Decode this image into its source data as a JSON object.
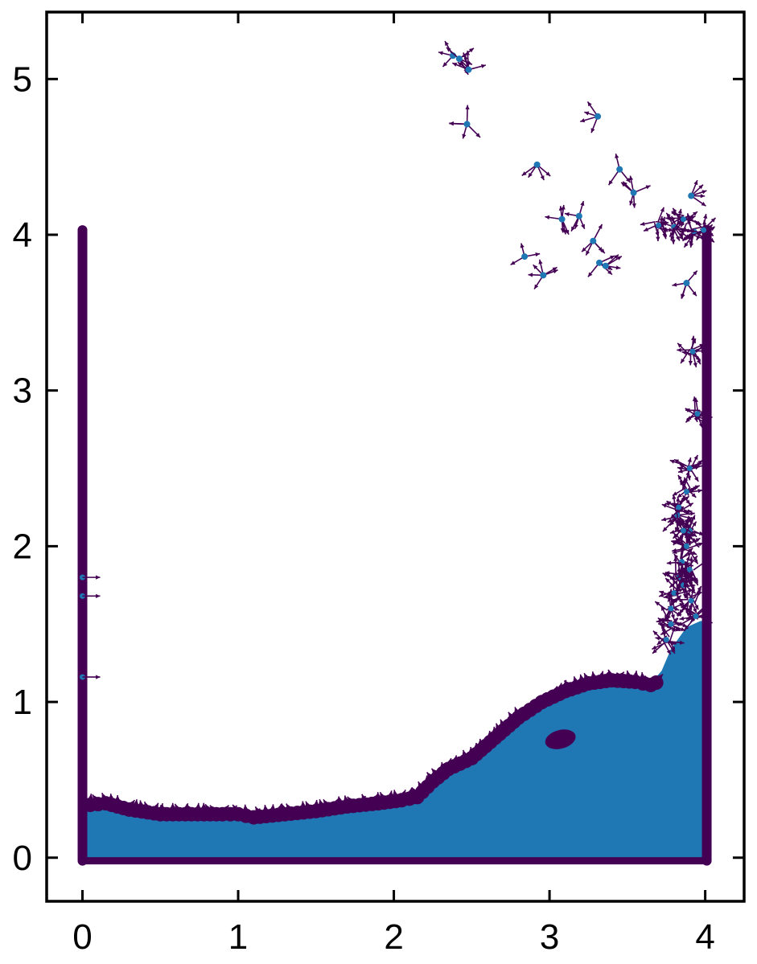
{
  "chart_data": {
    "type": "scatter",
    "title": "",
    "xlabel": "",
    "ylabel": "",
    "xlim": [
      -0.23,
      4.25
    ],
    "ylim": [
      -0.28,
      5.43
    ],
    "xticks": [
      0,
      1,
      2,
      3,
      4
    ],
    "yticks": [
      0,
      1,
      2,
      3,
      4,
      5
    ],
    "xtick_labels": [
      "0",
      "1",
      "2",
      "3",
      "4"
    ],
    "ytick_labels": [
      "0",
      "1",
      "2",
      "3",
      "4",
      "5"
    ],
    "grid": false,
    "legend": "none",
    "colors": {
      "fluid": "#1f77b4",
      "boundary": "#440154",
      "arrows": "#440154",
      "axes": "#000000"
    },
    "series": [
      {
        "role": "fluid-bulk",
        "polygon": [
          [
            0.02,
            -0.02
          ],
          [
            0.02,
            0.33
          ],
          [
            0.15,
            0.33
          ],
          [
            0.5,
            0.29
          ],
          [
            1.0,
            0.29
          ],
          [
            1.5,
            0.32
          ],
          [
            2.0,
            0.37
          ],
          [
            2.2,
            0.43
          ],
          [
            2.5,
            0.63
          ],
          [
            2.9,
            0.95
          ],
          [
            3.2,
            1.1
          ],
          [
            3.5,
            1.14
          ],
          [
            3.65,
            1.12
          ],
          [
            3.72,
            1.2
          ],
          [
            3.78,
            1.34
          ],
          [
            3.88,
            1.48
          ],
          [
            3.97,
            1.52
          ],
          [
            4.0,
            1.52
          ],
          [
            4.0,
            -0.02
          ]
        ]
      },
      {
        "role": "free-surface",
        "x": [
          0.05,
          0.15,
          0.3,
          0.5,
          0.7,
          0.9,
          1.0,
          1.1,
          1.3,
          1.5,
          1.7,
          1.9,
          2.05,
          2.15,
          2.25,
          2.35,
          2.5,
          2.65,
          2.8,
          2.95,
          3.1,
          3.25,
          3.4,
          3.55,
          3.65,
          3.72
        ],
        "y": [
          0.37,
          0.38,
          0.34,
          0.31,
          0.31,
          0.31,
          0.31,
          0.29,
          0.31,
          0.33,
          0.36,
          0.38,
          0.4,
          0.42,
          0.52,
          0.6,
          0.67,
          0.8,
          0.93,
          1.03,
          1.1,
          1.15,
          1.17,
          1.16,
          1.14,
          1.17
        ]
      },
      {
        "role": "left-wall",
        "x": [
          0.0,
          0.0
        ],
        "y": [
          -0.02,
          4.03
        ]
      },
      {
        "role": "right-wall",
        "x": [
          4.01,
          4.01
        ],
        "y": [
          -0.02,
          4.03
        ]
      },
      {
        "role": "bottom-wall",
        "x": [
          0.0,
          4.01
        ],
        "y": [
          -0.02,
          -0.02
        ]
      },
      {
        "role": "bubble",
        "cx": 3.07,
        "cy": 0.76,
        "rx": 0.1,
        "ry": 0.06
      },
      {
        "role": "wall-splash",
        "x": [
          3.75,
          3.78,
          3.8,
          3.83,
          3.85,
          3.88,
          3.9,
          3.82,
          3.86,
          3.9,
          3.78,
          3.83,
          3.88,
          3.86,
          3.91,
          3.94,
          3.9,
          3.95,
          3.92,
          3.7,
          3.8,
          3.86,
          3.93,
          3.99
        ],
        "y": [
          1.4,
          1.6,
          1.7,
          1.8,
          1.9,
          2.0,
          2.1,
          2.2,
          2.1,
          1.85,
          1.5,
          2.25,
          2.35,
          1.75,
          1.65,
          1.55,
          2.5,
          2.85,
          3.25,
          4.06,
          4.05,
          4.1,
          4.02,
          4.03
        ]
      },
      {
        "role": "spray",
        "x": [
          2.38,
          2.42,
          2.48,
          2.47,
          3.31,
          2.92,
          3.45,
          3.54,
          3.08,
          3.19,
          3.28,
          3.32,
          3.36,
          2.84,
          2.96,
          3.88,
          3.91
        ],
        "y": [
          5.15,
          5.13,
          5.06,
          4.71,
          4.76,
          4.45,
          4.42,
          4.27,
          4.1,
          4.12,
          3.96,
          3.82,
          3.8,
          3.86,
          3.74,
          3.69,
          4.25
        ]
      },
      {
        "role": "left-wall-particles",
        "x": [
          0.0,
          0.0,
          0.0
        ],
        "y": [
          1.8,
          1.68,
          1.16
        ]
      }
    ]
  }
}
